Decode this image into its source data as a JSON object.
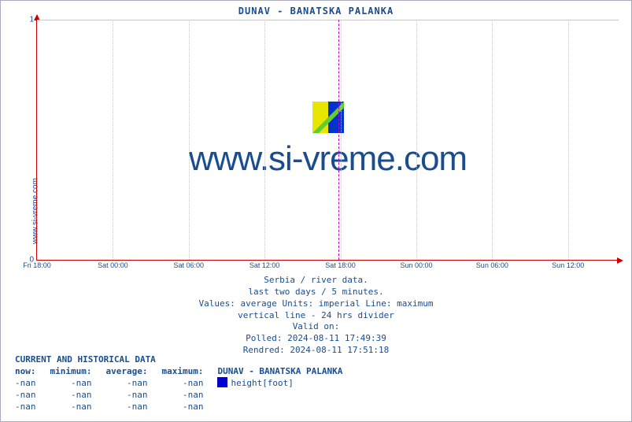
{
  "chart": {
    "title": "DUNAV -  BANATSKA PALANKA",
    "ylabel": "www.si-vreme.com",
    "watermark": "www.si-vreme.com",
    "type": "line",
    "background_color": "#ffffff",
    "axis_color": "#cc0000",
    "grid_color": "#c8c8c8",
    "divider_color": "#c800c8",
    "text_color": "#1a4d8f",
    "title_fontsize": 12,
    "watermark_fontsize": 44,
    "ylim": [
      0,
      1
    ],
    "yticks": [
      {
        "pos_pct": 100,
        "label": "0"
      },
      {
        "pos_pct": 0,
        "label": "1"
      }
    ],
    "xticks": [
      {
        "pos_pct": 0.0,
        "label": "Fri 18:00"
      },
      {
        "pos_pct": 13.04,
        "label": "Sat 00:00"
      },
      {
        "pos_pct": 26.09,
        "label": "Sat 06:00"
      },
      {
        "pos_pct": 39.13,
        "label": "Sat 12:00"
      },
      {
        "pos_pct": 52.17,
        "label": "Sat 18:00"
      },
      {
        "pos_pct": 65.22,
        "label": "Sun 00:00"
      },
      {
        "pos_pct": 78.26,
        "label": "Sun 06:00"
      },
      {
        "pos_pct": 91.3,
        "label": "Sun 12:00"
      }
    ],
    "vgrid_pct": [
      13.04,
      26.09,
      39.13,
      52.17,
      65.22,
      78.26,
      91.3
    ],
    "divider24_pct": 51.8,
    "logo_colors": {
      "left": "#e6e600",
      "right": "#0033cc",
      "mid": "#66cc33"
    }
  },
  "meta": {
    "line1": "Serbia / river data.",
    "line2": "last two days / 5 minutes.",
    "line3": "Values: average  Units: imperial  Line: maximum",
    "line4": "vertical line - 24 hrs  divider",
    "line5": "Valid on:",
    "line6": "Polled: 2024-08-11 17:49:39",
    "line7": "Rendred: 2024-08-11 17:51:18"
  },
  "datatable": {
    "heading": "CURRENT AND HISTORICAL DATA",
    "columns": [
      "now:",
      "minimum:",
      "average:",
      "maximum:"
    ],
    "series_header": "DUNAV -  BANATSKA PALANKA",
    "series_label": "height[foot]",
    "swatch_color": "#0000d0",
    "rows": [
      [
        "-nan",
        "-nan",
        "-nan",
        "-nan"
      ],
      [
        "-nan",
        "-nan",
        "-nan",
        "-nan"
      ],
      [
        "-nan",
        "-nan",
        "-nan",
        "-nan"
      ]
    ]
  }
}
